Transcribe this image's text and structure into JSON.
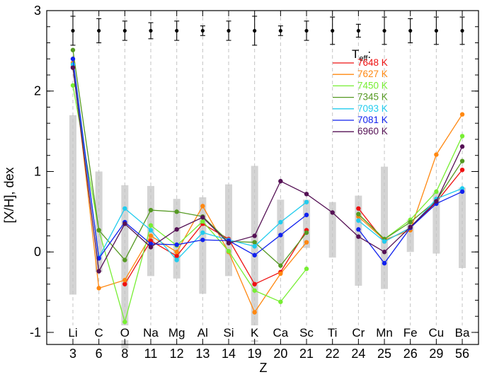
{
  "chart_data": {
    "type": "line",
    "xlabel": "Z",
    "ylabel": "[X/H], dex",
    "ylim": [
      -1.15,
      3.0
    ],
    "yticks": [
      -1,
      0,
      1,
      2,
      3
    ],
    "categories": [
      "3",
      "6",
      "8",
      "11",
      "12",
      "13",
      "14",
      "19",
      "20",
      "21",
      "22",
      "24",
      "25",
      "26",
      "29",
      "56"
    ],
    "elements": [
      "Li",
      "C",
      "O",
      "Na",
      "Mg",
      "Al",
      "Si",
      "K",
      "Ca",
      "Sc",
      "Ti",
      "Cr",
      "Mn",
      "Fe",
      "Cu",
      "Ba"
    ],
    "grid": "vertical dashed",
    "legend_position": "upper-right",
    "legend_title_main": "T",
    "legend_title_sub": "eff",
    "legend_title_suffix": ":",
    "series": [
      {
        "name": "7648 K",
        "color": "#ee1111",
        "values": [
          2.3,
          null,
          -0.4,
          0.14,
          -0.05,
          0.35,
          0.16,
          -0.4,
          -0.25,
          0.27,
          null,
          0.54,
          0.13,
          0.3,
          0.62,
          1.02
        ]
      },
      {
        "name": "7627 K",
        "color": "#ff8811",
        "values": [
          2.35,
          -0.45,
          -0.35,
          0.2,
          0.0,
          0.57,
          0.0,
          -0.75,
          -0.27,
          0.12,
          null,
          0.44,
          0.15,
          0.27,
          1.21,
          1.71
        ]
      },
      {
        "name": "7450 K",
        "color": "#77ee33",
        "values": [
          2.07,
          0.27,
          -0.87,
          0.33,
          0.08,
          0.38,
          0.01,
          -0.48,
          -0.62,
          -0.21,
          null,
          0.47,
          0.16,
          0.4,
          0.75,
          1.44
        ]
      },
      {
        "name": "7345 K",
        "color": "#559922",
        "values": [
          2.51,
          0.27,
          -0.1,
          0.52,
          0.5,
          0.44,
          0.13,
          0.12,
          -0.17,
          0.24,
          null,
          0.47,
          0.16,
          0.37,
          0.64,
          1.13
        ]
      },
      {
        "name": "7093 K",
        "color": "#22ccee",
        "values": [
          2.33,
          -0.07,
          0.54,
          0.27,
          -0.1,
          0.24,
          0.15,
          0.07,
          0.37,
          0.62,
          null,
          0.39,
          0.13,
          0.3,
          0.66,
          0.79
        ]
      },
      {
        "name": "7081 K",
        "color": "#1122ee",
        "values": [
          2.4,
          -0.08,
          0.37,
          0.1,
          0.09,
          0.15,
          0.14,
          -0.04,
          0.21,
          0.46,
          null,
          0.28,
          -0.14,
          0.3,
          0.6,
          0.75
        ]
      },
      {
        "name": "6960 K",
        "color": "#551155",
        "values": [
          2.29,
          -0.24,
          0.35,
          0.06,
          0.28,
          0.43,
          0.11,
          0.2,
          0.88,
          0.72,
          0.49,
          0.19,
          0.0,
          0.31,
          0.63,
          1.31
        ]
      }
    ],
    "range_bars": [
      {
        "low": -0.53,
        "high": 1.7
      },
      {
        "low": -0.25,
        "high": 1.0
      },
      {
        "low": -1.2,
        "high": 0.83
      },
      {
        "low": -0.3,
        "high": 0.82
      },
      {
        "low": -0.33,
        "high": 0.66
      },
      {
        "low": -0.52,
        "high": 0.68
      },
      {
        "low": -0.3,
        "high": 0.84
      },
      {
        "low": -1.12,
        "high": 1.07
      },
      {
        "low": -0.15,
        "high": 0.65
      },
      {
        "low": 0.05,
        "high": 0.65
      },
      {
        "low": -0.07,
        "high": 0.62
      },
      {
        "low": -0.42,
        "high": 0.7
      },
      {
        "low": -0.46,
        "high": 1.06
      },
      {
        "low": 0.0,
        "high": 0.4
      },
      {
        "low": -0.02,
        "high": 0.74
      },
      {
        "low": -0.2,
        "high": 0.8
      }
    ],
    "error_bars": {
      "value": 2.75,
      "half_widths": [
        0.18,
        0.15,
        0.12,
        0.1,
        0.12,
        0.06,
        0.12,
        0.18,
        0.06,
        0.12,
        0.17,
        0.08,
        0.17,
        0.15,
        0.17,
        0.17
      ]
    }
  }
}
